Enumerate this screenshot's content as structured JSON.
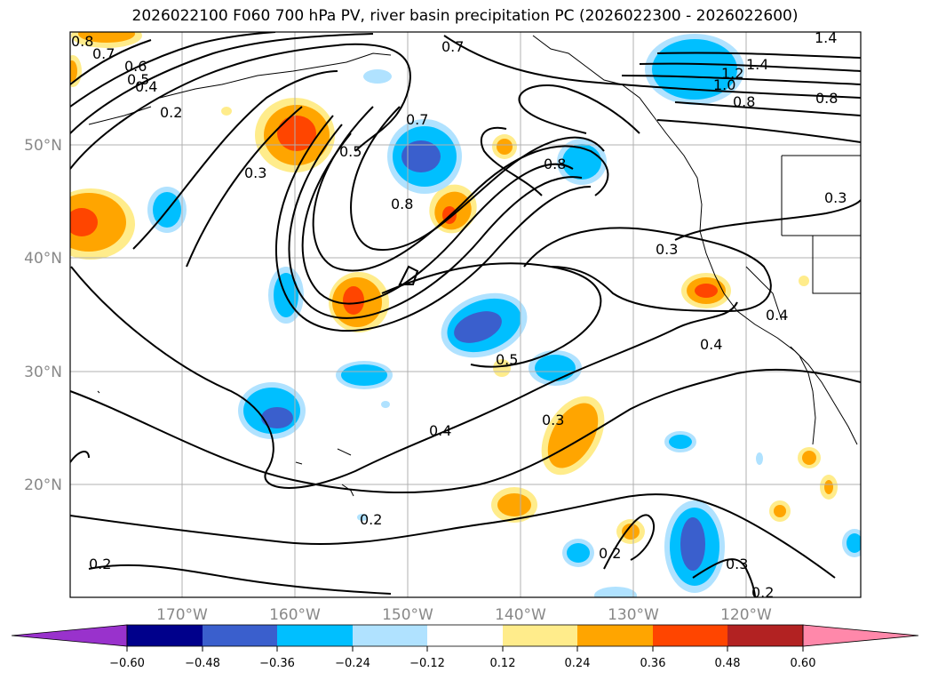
{
  "title": "2026022100 F060 700 hPa PV, river basin precipitation PC (2026022300 - 2026022600)",
  "map": {
    "lat_labels": [
      "50°N",
      "40°N",
      "30°N",
      "20°N"
    ],
    "lon_labels": [
      "170°W",
      "160°W",
      "150°W",
      "140°W",
      "130°W",
      "120°W"
    ],
    "grid": true
  },
  "contour_labels": [
    "0.8",
    "0.7",
    "0.6",
    "0.5",
    "0.4",
    "0.2",
    "0.3",
    "0.7",
    "0.5",
    "0.7",
    "0.8",
    "0.8",
    "1.4",
    "1.4",
    "1.2",
    "1.0",
    "0.8",
    "0.8",
    "0.3",
    "0.3",
    "0.4",
    "0.4",
    "0.5",
    "0.4",
    "0.3",
    "0.2",
    "0.2",
    "0.2",
    "0.3",
    "0.2"
  ],
  "colorbar": {
    "ticks": [
      "−0.60",
      "−0.48",
      "−0.36",
      "−0.24",
      "−0.12",
      "0.12",
      "0.24",
      "0.36",
      "0.48",
      "0.60"
    ],
    "colors": [
      "#9932cc",
      "#00008b",
      "#3a5fcd",
      "#00bfff",
      "#b0e2ff",
      "#ffffff",
      "#ffec8b",
      "#ffa500",
      "#ff4500",
      "#b22222",
      "#ff88aa"
    ],
    "extend": "both"
  }
}
